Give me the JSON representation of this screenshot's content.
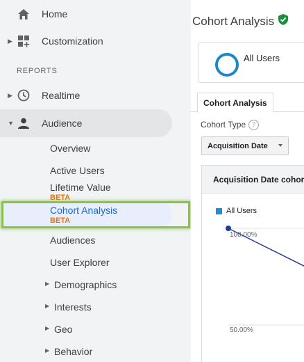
{
  "sidebar": {
    "home": "Home",
    "customization": "Customization",
    "reports_label": "REPORTS",
    "realtime": "Realtime",
    "audience": "Audience",
    "audience_items": {
      "overview": "Overview",
      "active_users": "Active Users",
      "lifetime_value": "Lifetime Value",
      "lifetime_value_badge": "BETA",
      "cohort_analysis": "Cohort Analysis",
      "cohort_analysis_badge": "BETA",
      "audiences": "Audiences",
      "user_explorer": "User Explorer",
      "demographics": "Demographics",
      "interests": "Interests",
      "geo": "Geo",
      "behavior": "Behavior"
    }
  },
  "main": {
    "title": "Cohort Analysis",
    "segment": "All Users",
    "tab": "Cohort Analysis",
    "cohort_type_label": "Cohort Type",
    "cohort_type_value": "Acquisition Date",
    "chart_title": "Acquisition Date cohor"
  },
  "colors": {
    "accent": "#1967d2",
    "highlight": "#8bc34a",
    "beta": "#e8710a",
    "series": "#1f3c9c"
  },
  "chart_data": {
    "type": "line",
    "title": "Acquisition Date cohor",
    "legend": [
      "All Users"
    ],
    "y_tick_labels": [
      "100.00%",
      "50.00%"
    ],
    "series": [
      {
        "name": "All Users",
        "values": [
          100,
          80
        ]
      }
    ],
    "ylim": [
      0,
      100
    ],
    "grid": true
  }
}
